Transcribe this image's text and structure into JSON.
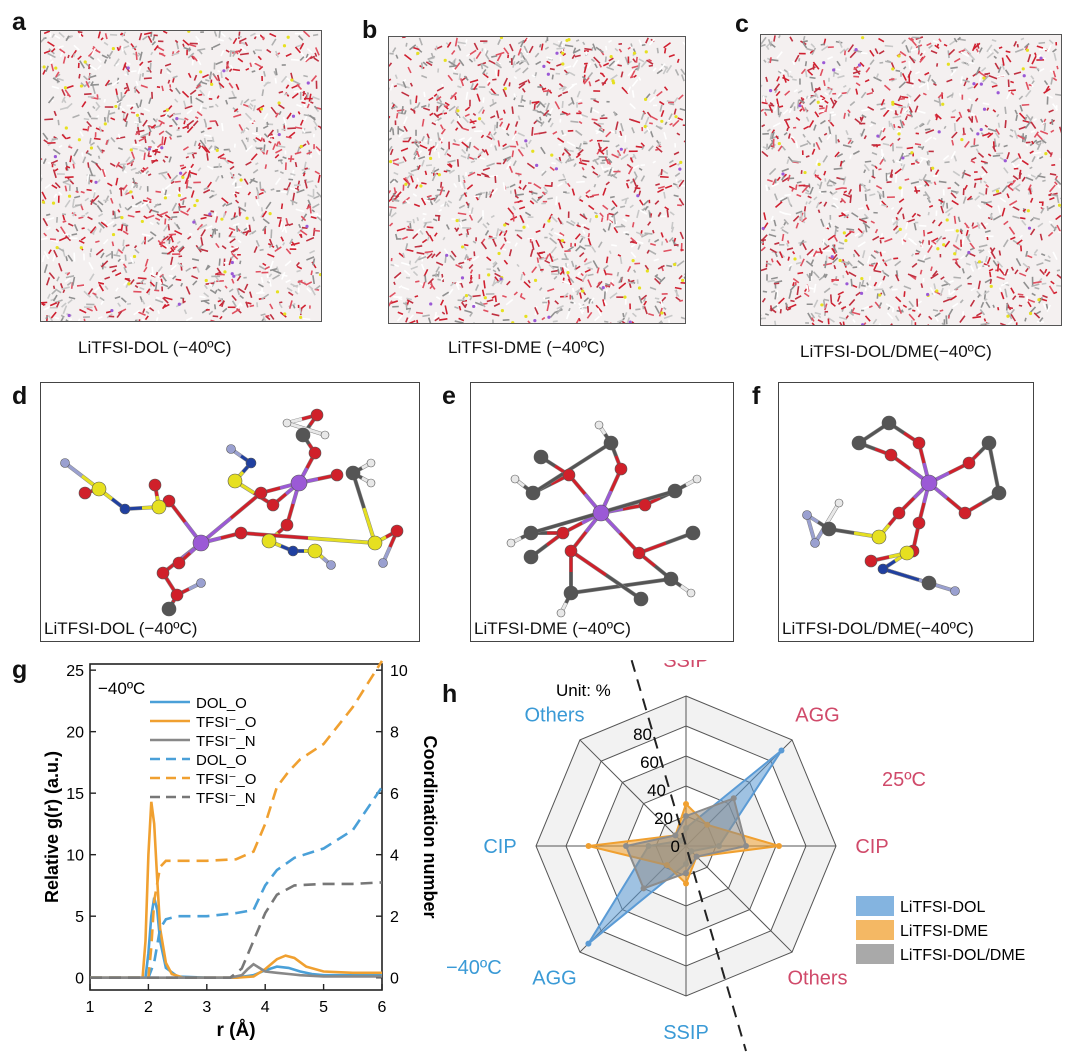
{
  "panels": {
    "a": {
      "letter": "a",
      "caption": "LiTFSI-DOL (−40ºC)"
    },
    "b": {
      "letter": "b",
      "caption": "LiTFSI-DME (−40ºC)"
    },
    "c": {
      "letter": "c",
      "caption": "LiTFSI-DOL/DME(−40ºC)"
    },
    "d": {
      "letter": "d",
      "caption": "LiTFSI-DOL (−40ºC)"
    },
    "e": {
      "letter": "e",
      "caption": "LiTFSI-DME (−40ºC)"
    },
    "f": {
      "letter": "f",
      "caption": "LiTFSI-DOL/DME(−40ºC)"
    },
    "g": {
      "letter": "g"
    },
    "h": {
      "letter": "h"
    }
  },
  "atom_colors": {
    "O": "#d0202a",
    "H": "#e8e8e8",
    "C": "#555555",
    "S": "#e6e020",
    "N": "#2040a0",
    "F": "#9aa0d0",
    "Li": "#9b59d6"
  },
  "chart_data": [
    {
      "type": "line",
      "annotation": "−40ºC",
      "xlabel": "r (Å)",
      "ylabel_left": "Relative g(r) (a.u.)",
      "ylabel_right": "Coordination number",
      "xlim": [
        1,
        6
      ],
      "ylim_left": [
        -1,
        25.5
      ],
      "ylim_right": [
        -0.4,
        10.2
      ],
      "xticks": [
        1,
        2,
        3,
        4,
        5,
        6
      ],
      "yticks_left": [
        0,
        5,
        10,
        15,
        20,
        25
      ],
      "yticks_right": [
        0,
        2,
        4,
        6,
        8,
        10
      ],
      "series": [
        {
          "name": "DOL_O",
          "axis": "left",
          "style": "solid",
          "color": "#4aa0d8",
          "x": [
            1,
            1.95,
            2.0,
            2.05,
            2.1,
            2.15,
            2.2,
            2.3,
            2.5,
            3.0,
            3.5,
            3.8,
            4.0,
            4.2,
            4.4,
            4.6,
            4.8,
            5.0,
            5.5,
            6.0
          ],
          "y": [
            0,
            0,
            2.0,
            5.0,
            6.5,
            5.5,
            3.0,
            0.8,
            0.1,
            0,
            0,
            0.2,
            0.6,
            0.9,
            0.8,
            0.5,
            0.3,
            0.2,
            0.2,
            0.2
          ]
        },
        {
          "name": "TFSI⁻_O",
          "axis": "left",
          "style": "solid",
          "color": "#f0a030",
          "x": [
            1,
            1.9,
            1.95,
            2.0,
            2.05,
            2.1,
            2.15,
            2.2,
            2.3,
            2.4,
            2.6,
            3.0,
            3.5,
            3.8,
            4.0,
            4.2,
            4.35,
            4.5,
            4.7,
            5.0,
            5.5,
            6.0
          ],
          "y": [
            0,
            0,
            3.0,
            10.0,
            14.3,
            12.5,
            8.0,
            4.0,
            1.2,
            0.3,
            0,
            0,
            0,
            0.1,
            0.7,
            1.5,
            1.8,
            1.6,
            0.9,
            0.5,
            0.4,
            0.4
          ]
        },
        {
          "name": "TFSI⁻_N",
          "axis": "left",
          "style": "solid",
          "color": "#888888",
          "x": [
            1,
            3.4,
            3.6,
            3.7,
            3.8,
            3.9,
            4.0,
            4.2,
            4.4,
            4.6,
            5.0,
            5.5,
            6.0
          ],
          "y": [
            0,
            0,
            0.2,
            0.7,
            1.1,
            0.8,
            0.5,
            0.4,
            0.3,
            0.2,
            0.1,
            0.1,
            0.1
          ]
        },
        {
          "name": "DOL_O",
          "axis": "right",
          "style": "dashed",
          "color": "#4aa0d8",
          "x": [
            1,
            2.0,
            2.1,
            2.2,
            2.3,
            2.5,
            3.0,
            3.5,
            3.8,
            4.0,
            4.2,
            4.5,
            5.0,
            5.5,
            6.0
          ],
          "y": [
            0,
            0,
            0.5,
            1.6,
            1.9,
            2.0,
            2.0,
            2.1,
            2.2,
            3.0,
            3.5,
            3.9,
            4.2,
            4.8,
            6.2
          ]
        },
        {
          "name": "TFSI⁻_O",
          "axis": "right",
          "style": "dashed",
          "color": "#f0a030",
          "x": [
            1,
            2.0,
            2.05,
            2.1,
            2.2,
            2.3,
            2.5,
            3.0,
            3.5,
            3.8,
            4.0,
            4.2,
            4.4,
            4.6,
            5.0,
            5.5,
            6.0
          ],
          "y": [
            0,
            0,
            1.0,
            2.5,
            3.6,
            3.8,
            3.8,
            3.8,
            3.85,
            4.1,
            5.0,
            6.2,
            6.7,
            7.1,
            7.6,
            8.8,
            10.3
          ]
        },
        {
          "name": "TFSI⁻_N",
          "axis": "right",
          "style": "dashed",
          "color": "#777777",
          "x": [
            1,
            3.4,
            3.6,
            3.8,
            4.0,
            4.2,
            4.5,
            5.0,
            5.5,
            6.0
          ],
          "y": [
            0,
            0,
            0.3,
            1.2,
            2.1,
            2.7,
            3.0,
            3.05,
            3.05,
            3.1
          ]
        }
      ]
    },
    {
      "type": "radar",
      "unit_label": "Unit: %",
      "rticks": [
        0,
        20,
        40,
        60,
        80
      ],
      "rmax": 100,
      "temperature_labels": {
        "top_right": "25ºC",
        "bottom_left": "−40ºC"
      },
      "axes": [
        {
          "label": "SSIP",
          "color": "#d04a6a"
        },
        {
          "label": "AGG",
          "color": "#d04a6a"
        },
        {
          "label": "CIP",
          "color": "#d04a6a"
        },
        {
          "label": "Others",
          "color": "#d04a6a"
        },
        {
          "label": "SSIP",
          "color": "#3a9ad6"
        },
        {
          "label": "AGG",
          "color": "#3a9ad6"
        },
        {
          "label": "CIP",
          "color": "#3a9ad6"
        },
        {
          "label": "Others",
          "color": "#3a9ad6"
        }
      ],
      "series": [
        {
          "name": "LiTFSI-DOL",
          "color": "#5b9bd5",
          "values": [
            12,
            90,
            22,
            5,
            12,
            92,
            25,
            5
          ]
        },
        {
          "name": "LiTFSI-DME",
          "color": "#f0a030",
          "values": [
            28,
            20,
            62,
            10,
            25,
            18,
            65,
            10
          ]
        },
        {
          "name": "LiTFSI-DOL/DME",
          "color": "#8c8c8c",
          "values": [
            20,
            45,
            40,
            10,
            18,
            40,
            40,
            10
          ]
        }
      ]
    }
  ]
}
